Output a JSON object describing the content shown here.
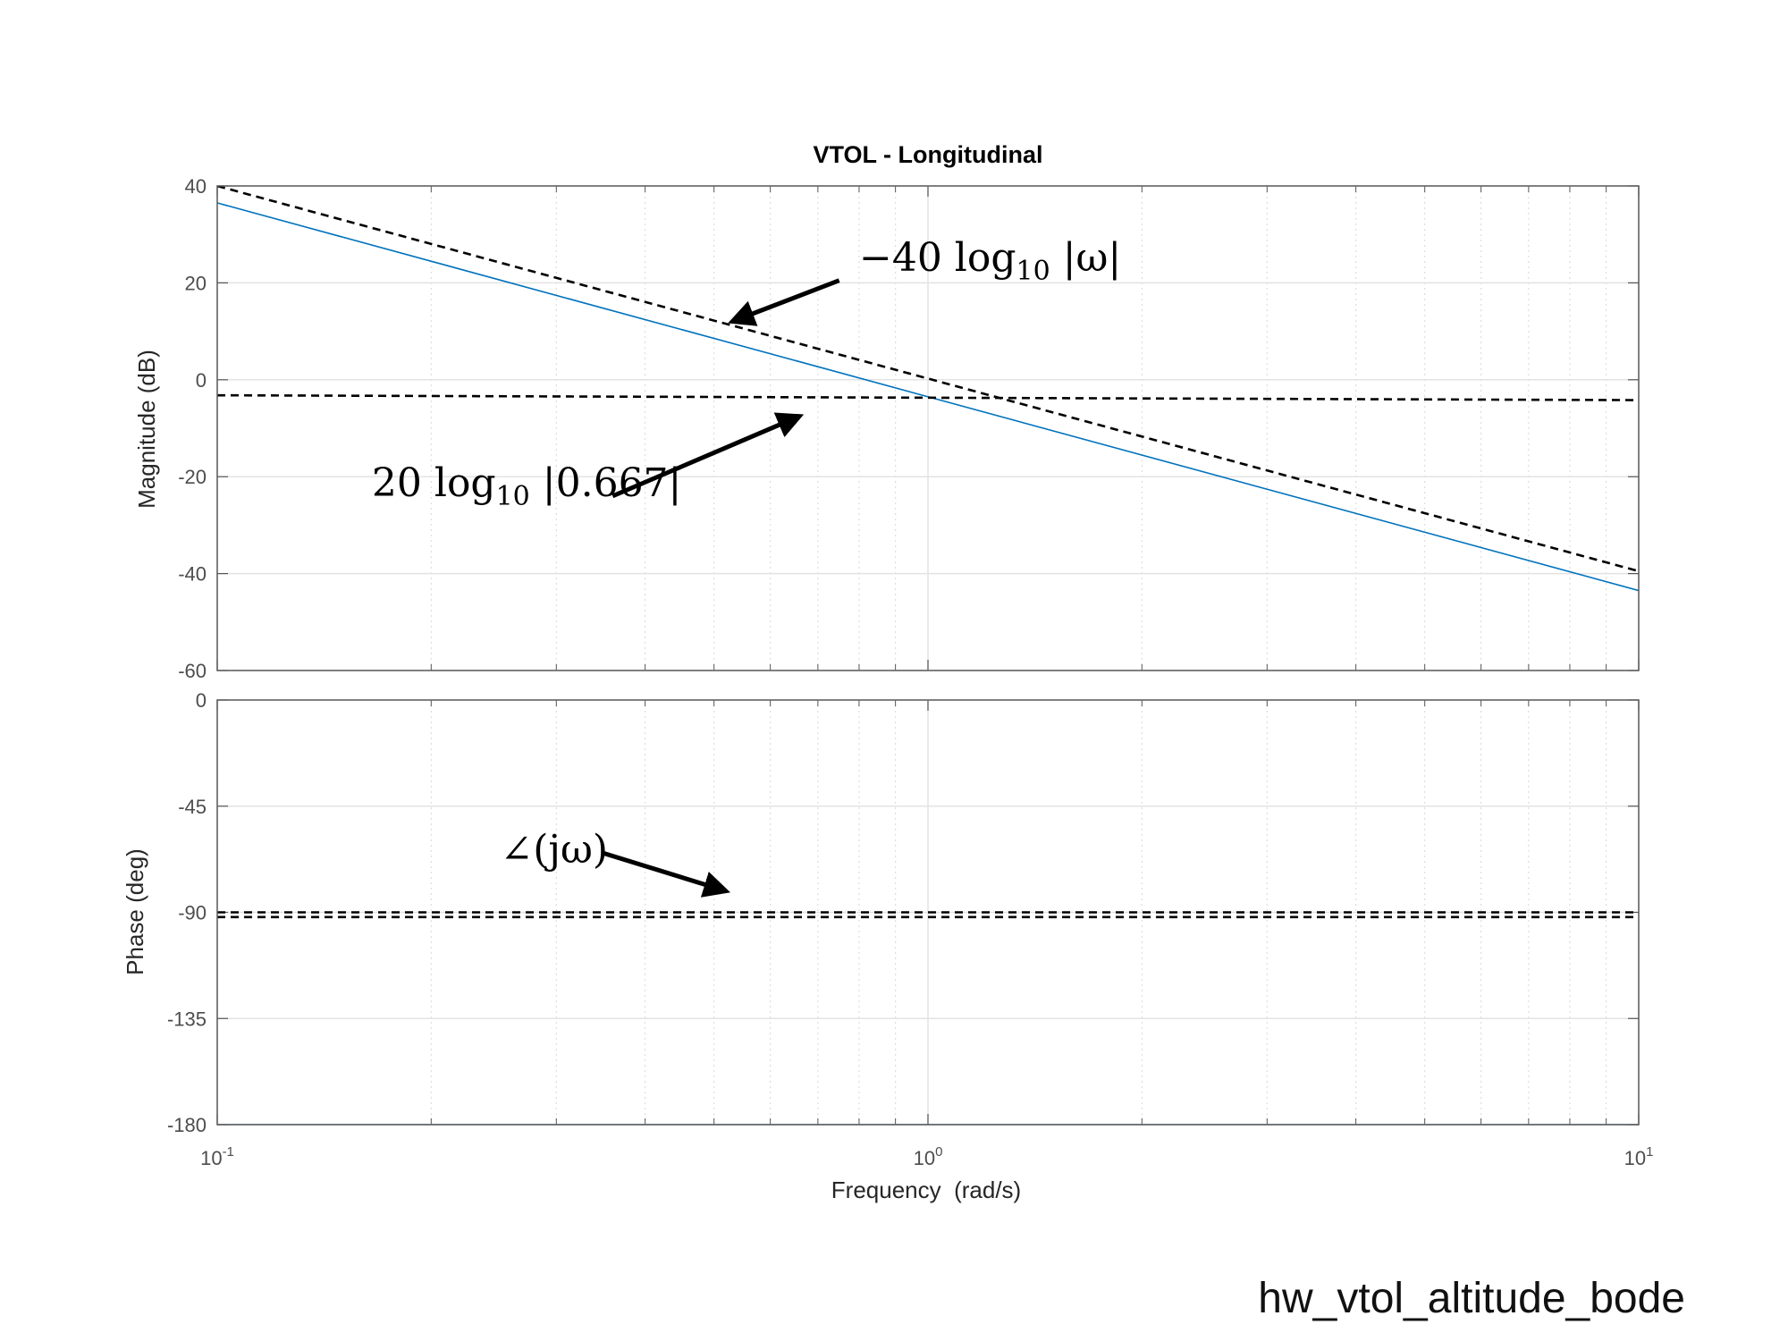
{
  "chart_data": {
    "type": "line",
    "title": "VTOL - Longitudinal",
    "xlabel": "Frequency  (rad/s)",
    "xscale": "log",
    "xlim": [
      0.1,
      10
    ],
    "x_ticks": [
      {
        "value": 0.1,
        "base": "10",
        "exp": "-1"
      },
      {
        "value": 1,
        "base": "10",
        "exp": "0"
      },
      {
        "value": 10,
        "base": "10",
        "exp": "1"
      }
    ],
    "grid": true,
    "panels": [
      {
        "name": "magnitude",
        "ylabel": "Magnitude (dB)",
        "ylim": [
          -60,
          40
        ],
        "yticks": [
          40,
          20,
          0,
          -20,
          -40,
          -60
        ],
        "series": [
          {
            "style": "solid",
            "color": "#0072bd",
            "x": [
              0.1,
              10
            ],
            "y": [
              36.5,
              -43.5
            ]
          },
          {
            "style": "dashed",
            "color": "#000000",
            "x": [
              0.1,
              10
            ],
            "y": [
              40,
              -39.5
            ]
          },
          {
            "style": "dashed",
            "color": "#000000",
            "x": [
              0.1,
              10
            ],
            "y": [
              -3.2,
              -4.2
            ]
          }
        ]
      },
      {
        "name": "phase",
        "ylabel": "Phase (deg)",
        "ylim": [
          -180,
          0
        ],
        "yticks": [
          0,
          -45,
          -90,
          -135,
          -180
        ],
        "series": [
          {
            "style": "solid",
            "color": "#0072bd",
            "x": [
              0.1,
              10
            ],
            "y": [
              -180,
              -180
            ]
          },
          {
            "style": "dashed",
            "color": "#000000",
            "x": [
              0.1,
              10
            ],
            "y": [
              -90,
              -90
            ]
          },
          {
            "style": "dashed",
            "color": "#000000",
            "x": [
              0.1,
              10
            ],
            "y": [
              -92,
              -92
            ]
          }
        ]
      }
    ],
    "annotations": [
      {
        "panel": "magnitude",
        "prefix": "−40 log",
        "sub": "10",
        "suffix": " |ω|",
        "text_x": 0.8,
        "text_y": 22.5,
        "arrow_from": [
          0.75,
          20.5
        ],
        "arrow_to": [
          0.53,
          12
        ]
      },
      {
        "panel": "magnitude",
        "prefix": "20 log",
        "sub": "10",
        "suffix": " |0.667|",
        "text_x": 0.165,
        "text_y": -24,
        "arrow_from": [
          0.36,
          -24
        ],
        "arrow_to": [
          0.66,
          -7.5
        ]
      },
      {
        "panel": "phase",
        "prefix": "∠(jω)",
        "sub": "",
        "suffix": "",
        "text_x": 0.25,
        "text_y": -69,
        "arrow_from": [
          0.35,
          -65
        ],
        "arrow_to": [
          0.52,
          -81
        ]
      }
    ]
  },
  "caption": "hw_vtol_altitude_bode"
}
